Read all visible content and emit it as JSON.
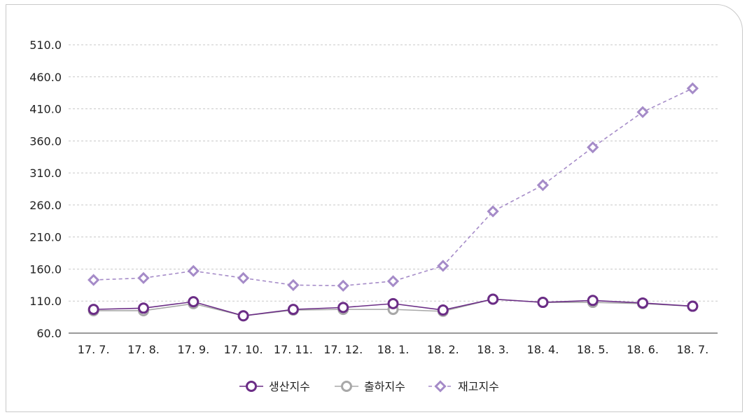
{
  "chart_data": {
    "type": "line",
    "title": "",
    "xlabel": "",
    "ylabel": "",
    "categories": [
      "17. 7.",
      "17. 8.",
      "17. 9.",
      "17. 10.",
      "17. 11.",
      "17. 12.",
      "18. 1.",
      "18. 2.",
      "18. 3.",
      "18. 4.",
      "18. 5.",
      "18. 6.",
      "18. 7."
    ],
    "y_ticks": [
      "60.0",
      "110.0",
      "160.0",
      "210.0",
      "260.0",
      "310.0",
      "360.0",
      "410.0",
      "460.0",
      "510.0"
    ],
    "ylim": [
      60,
      510
    ],
    "grid": true,
    "legend_position": "bottom",
    "series": [
      {
        "name": "생산지수",
        "color": "#6b2d86",
        "style": "solid",
        "marker": "circle",
        "values": [
          97,
          99,
          109,
          87,
          97,
          100,
          106,
          96,
          113,
          108,
          111,
          107,
          102
        ]
      },
      {
        "name": "출하지수",
        "color": "#a8a8a8",
        "style": "solid",
        "marker": "circle",
        "values": [
          95,
          95,
          106,
          87,
          96,
          97,
          97,
          94,
          113,
          108,
          108,
          106,
          102
        ]
      },
      {
        "name": "재고지수",
        "color": "#a58bc8",
        "style": "dashed",
        "marker": "diamond",
        "values": [
          143,
          146,
          157,
          146,
          135,
          134,
          141,
          165,
          250,
          291,
          350,
          405,
          442
        ]
      }
    ]
  }
}
